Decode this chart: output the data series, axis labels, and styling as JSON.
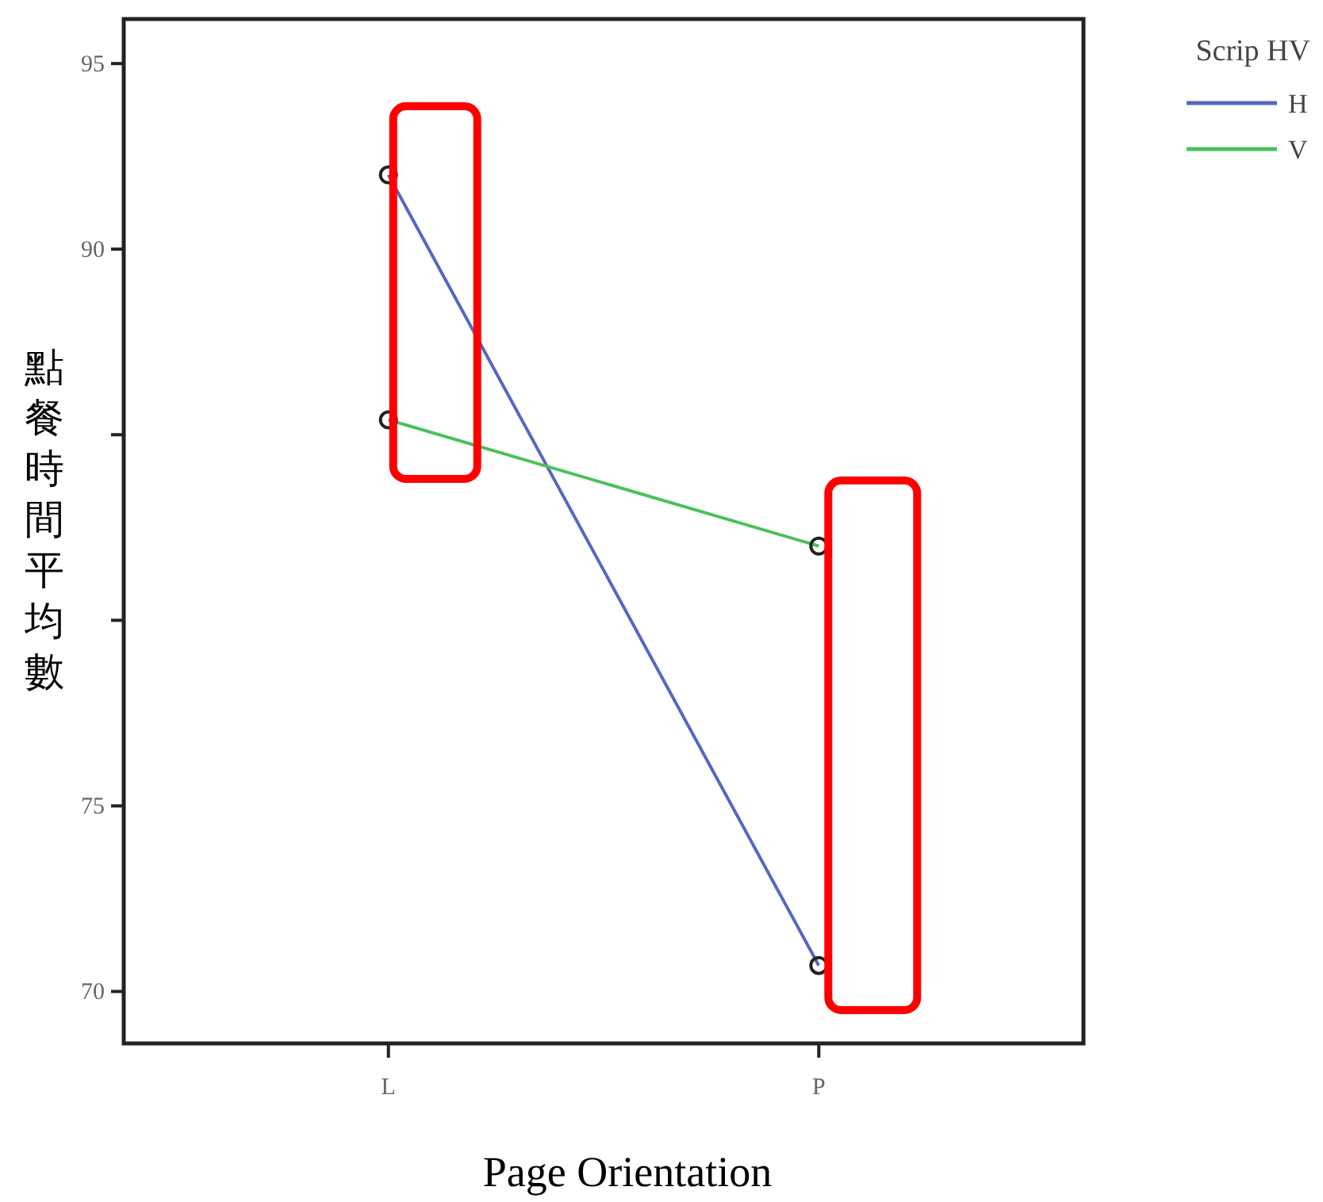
{
  "chart_data": {
    "type": "line",
    "xlabel": "Page Orientation",
    "ylabel": "點餐時間平均數",
    "legend_title": "Scrip HV",
    "categories": [
      "L",
      "P"
    ],
    "series": [
      {
        "name": "H",
        "color": "#5468c0",
        "values": [
          92,
          70.7
        ]
      },
      {
        "name": "V",
        "color": "#4cc05a",
        "values": [
          85.4,
          82
        ]
      }
    ],
    "ylim": [
      68.6,
      96.2
    ],
    "yticks": [
      95,
      90,
      {
        "value": 85,
        "label": null
      },
      {
        "value": 80,
        "label": null
      },
      75,
      70
    ],
    "marker": "circle",
    "legend": "top right",
    "grid": false
  }
}
